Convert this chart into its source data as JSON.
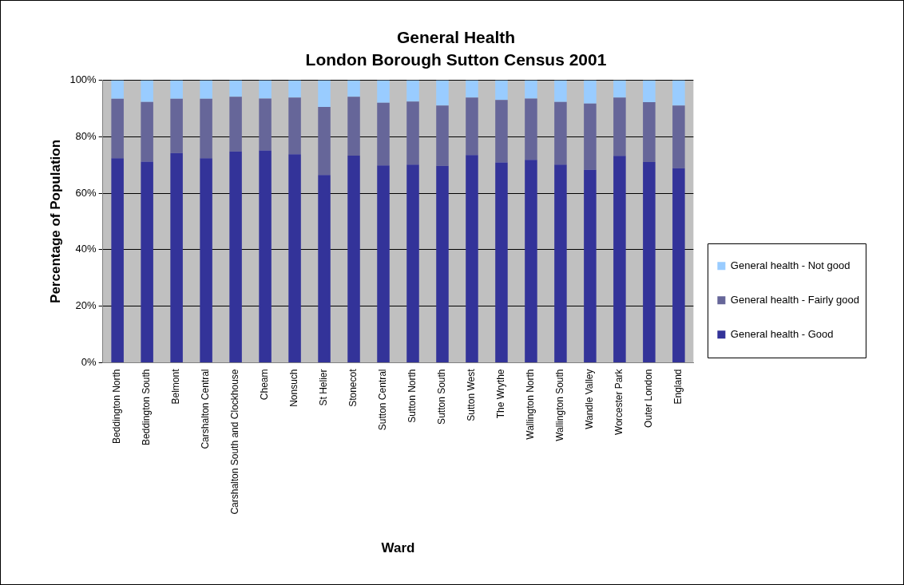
{
  "chart_data": {
    "type": "bar",
    "stacked": true,
    "title": "General Health",
    "subtitle": "London Borough Sutton Census 2001",
    "xlabel": "Ward",
    "ylabel": "Percentage of Population",
    "categories": [
      "Beddington North",
      "Beddington South",
      "Belmont",
      "Carshalton Central",
      "Carshalton South and Clockhouse",
      "Cheam",
      "Nonsuch",
      "St Helier",
      "Stonecot",
      "Sutton Central",
      "Sutton North",
      "Sutton South",
      "Sutton West",
      "The Wrythe",
      "Wallington North",
      "Wallington South",
      "Wandle Valley",
      "Worcester Park",
      "Outer London",
      "England"
    ],
    "series": [
      {
        "name": "General health - Good",
        "color": "#333399",
        "values": [
          72.4,
          71.2,
          74.2,
          72.4,
          74.8,
          75.1,
          73.8,
          66.4,
          73.3,
          69.8,
          70.1,
          69.7,
          73.5,
          70.9,
          71.8,
          70.1,
          68.3,
          73.2,
          71.0,
          68.8
        ]
      },
      {
        "name": "General health - Fairly good",
        "color": "#666699",
        "values": [
          21.0,
          21.1,
          19.2,
          21.0,
          19.3,
          18.4,
          20.0,
          24.1,
          20.8,
          22.2,
          22.3,
          21.3,
          20.3,
          22.1,
          21.7,
          22.2,
          23.4,
          20.6,
          21.2,
          22.2
        ]
      },
      {
        "name": "General health - Not good",
        "color": "#99ccff",
        "values": [
          6.6,
          7.7,
          6.6,
          6.6,
          5.9,
          6.5,
          6.2,
          9.5,
          5.9,
          8.0,
          7.6,
          9.0,
          6.2,
          7.0,
          6.5,
          7.7,
          8.3,
          6.2,
          7.8,
          9.0
        ]
      }
    ],
    "ylim": [
      0,
      100
    ],
    "yticks": [
      {
        "value": 0,
        "label": "0%"
      },
      {
        "value": 20,
        "label": "20%"
      },
      {
        "value": 40,
        "label": "40%"
      },
      {
        "value": 60,
        "label": "60%"
      },
      {
        "value": 80,
        "label": "80%"
      },
      {
        "value": 100,
        "label": "100%"
      }
    ],
    "grid": "y",
    "legend": "right"
  }
}
